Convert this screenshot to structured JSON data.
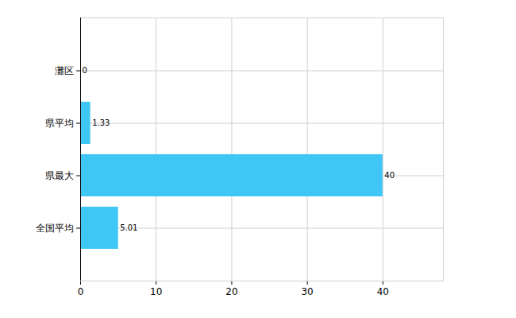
{
  "chart_data": {
    "type": "bar",
    "orientation": "horizontal",
    "categories": [
      "灘区",
      "県平均",
      "県最大",
      "全国平均"
    ],
    "values": [
      0,
      1.33,
      40,
      5.01
    ],
    "color": "#3fc6f5",
    "xlim": [
      0,
      48
    ],
    "xticks": [
      0,
      10,
      20,
      30,
      40
    ],
    "grid": true,
    "data_labels": true
  }
}
